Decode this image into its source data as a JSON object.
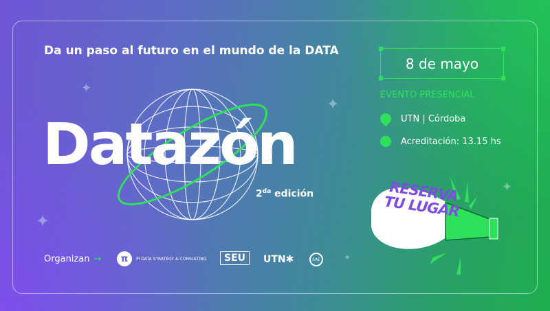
{
  "tagline": "Da un paso al futuro en el mundo de la DATA",
  "title": "Datazón",
  "edition": {
    "number": "2",
    "suffix": "da",
    "label": "edición"
  },
  "date": "8 de mayo",
  "event_type": "EVENTO PRESENCIAL",
  "location": "UTN | Córdoba",
  "accreditation": "Acreditación: 13.15 hs",
  "cta": {
    "line1": "RESERVA",
    "line2": "TU LUGAR"
  },
  "organizers": {
    "label": "Organizan",
    "logos": [
      {
        "name": "PI DATA STRATEGY & CONSULTING",
        "mark": "π"
      },
      {
        "name": "SEU"
      },
      {
        "name": "UTN✱"
      },
      {
        "name": "SAE"
      }
    ]
  },
  "colors": {
    "accent": "#2fe05a",
    "cta_text": "#7b4ee0"
  }
}
